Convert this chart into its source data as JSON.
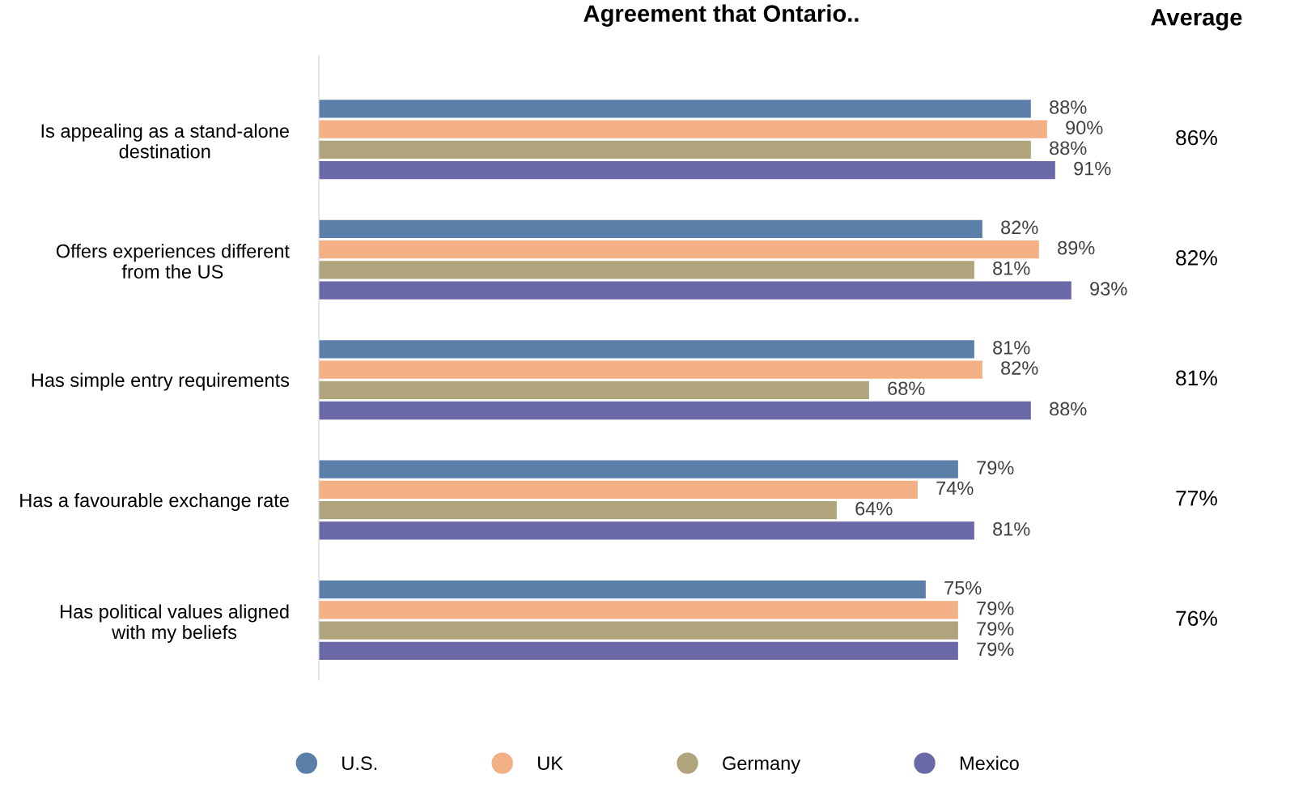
{
  "chart_data": {
    "type": "bar",
    "orientation": "horizontal",
    "title": "Agreement that Ontario..",
    "categories": [
      "Is appealing as a stand-alone\ndestination",
      "Offers experiences different\nfrom the US",
      "Has simple entry requirements",
      "Has a favourable exchange rate",
      "Has political values aligned\nwith my beliefs"
    ],
    "series": [
      {
        "name": "U.S.",
        "color": "#5b7fa8",
        "values": [
          88,
          82,
          81,
          79,
          75
        ],
        "value_labels": [
          "88%",
          "82%",
          "81%",
          "79%",
          "75%"
        ]
      },
      {
        "name": "UK",
        "color": "#f2b084",
        "values": [
          90,
          89,
          82,
          74,
          79
        ],
        "value_labels": [
          "90%",
          "89%",
          "82%",
          "74%",
          "79%"
        ]
      },
      {
        "name": "Germany",
        "color": "#b0a47c",
        "values": [
          88,
          81,
          68,
          64,
          79
        ],
        "value_labels": [
          "88%",
          "81%",
          "68%",
          "64%",
          "79%"
        ]
      },
      {
        "name": "Mexico",
        "color": "#6b68a8",
        "values": [
          91,
          93,
          88,
          81,
          79
        ],
        "value_labels": [
          "91%",
          "93%",
          "88%",
          "81%",
          "79%"
        ]
      }
    ],
    "annotations": [
      "Average",
      "86%",
      "82%",
      "81%",
      "77%",
      "76%"
    ],
    "legend": "bottom",
    "marker": "circle",
    "tick_labels": "y"
  }
}
